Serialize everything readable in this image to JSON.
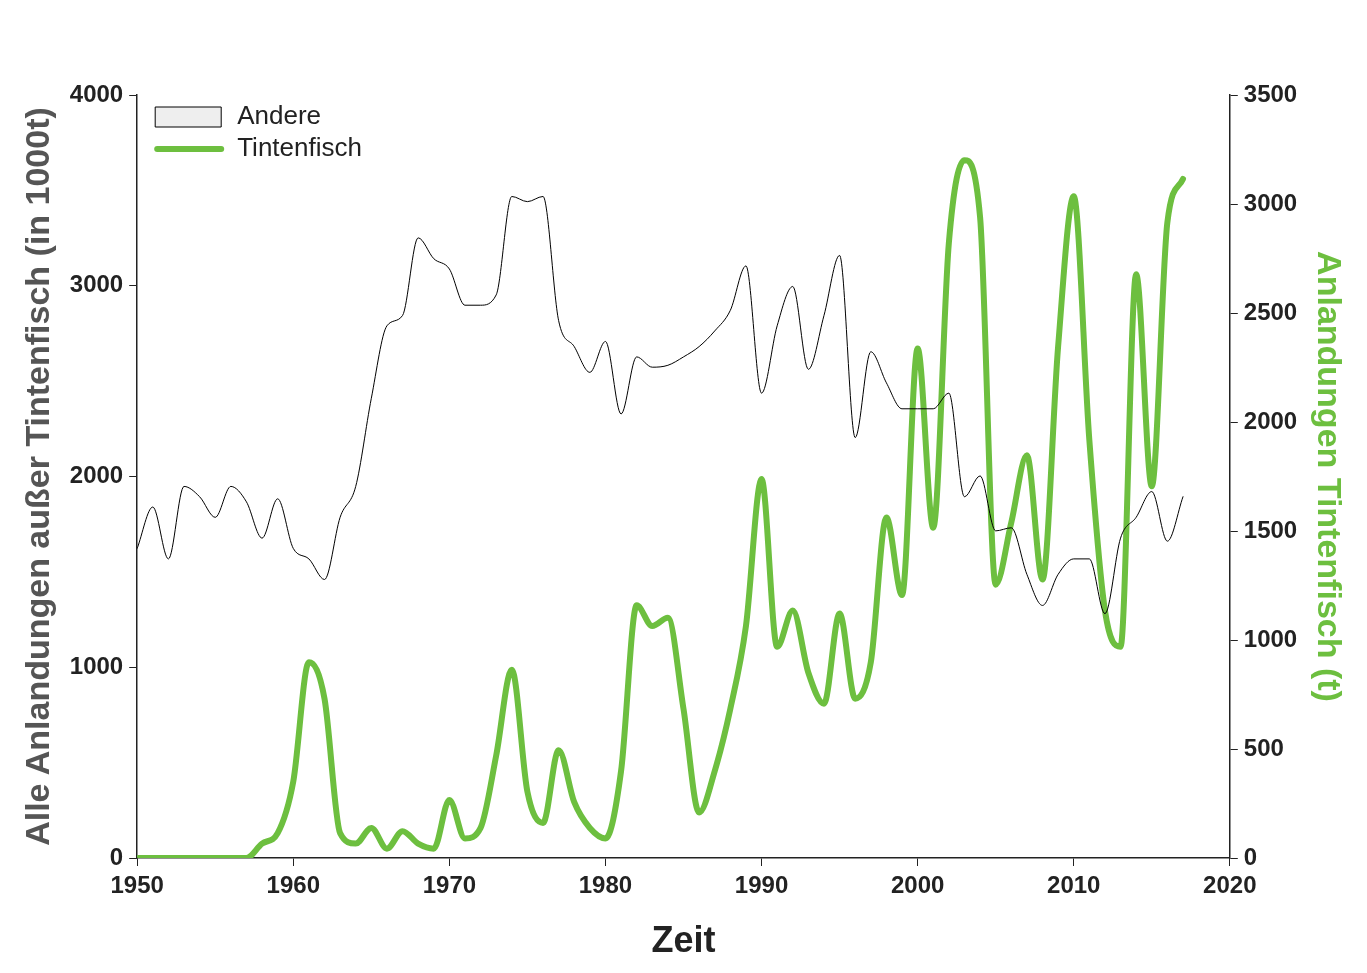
{
  "chart_data": {
    "type": "line",
    "xlabel": "Zeit",
    "ylabel": "Alle Anlandungen außer Tintenfisch (in 1000t)",
    "y2label": "Anlandungen Tintenfisch (t)",
    "x": [
      1950,
      1951,
      1952,
      1953,
      1954,
      1955,
      1956,
      1957,
      1958,
      1959,
      1960,
      1961,
      1962,
      1963,
      1964,
      1965,
      1966,
      1967,
      1968,
      1969,
      1970,
      1971,
      1972,
      1973,
      1974,
      1975,
      1976,
      1977,
      1978,
      1979,
      1980,
      1981,
      1982,
      1983,
      1984,
      1985,
      1986,
      1987,
      1988,
      1989,
      1990,
      1991,
      1992,
      1993,
      1994,
      1995,
      1996,
      1997,
      1998,
      1999,
      2000,
      2001,
      2002,
      2003,
      2004,
      2005,
      2006,
      2007,
      2008,
      2009,
      2010,
      2011,
      2012,
      2013,
      2014,
      2015,
      2016,
      2017
    ],
    "xlim": [
      1950,
      2020
    ],
    "xticks": [
      1950,
      1960,
      1970,
      1980,
      1990,
      2000,
      2010,
      2020
    ],
    "ylim": [
      0,
      4000
    ],
    "yticks": [
      0,
      1000,
      2000,
      3000,
      4000
    ],
    "y2lim": [
      0,
      3500
    ],
    "y2ticks": [
      0,
      500,
      1000,
      1500,
      2000,
      2500,
      3000,
      3500
    ],
    "grid": false,
    "legend": "top left",
    "marker": "none",
    "line_style": "solid",
    "series": [
      {
        "name": "Andere",
        "color": "#000000",
        "values": [
          1623,
          1840,
          1568,
          1948,
          1894,
          1786,
          1948,
          1867,
          1677,
          1883,
          1623,
          1568,
          1460,
          1786,
          1948,
          2410,
          2790,
          2844,
          3251,
          3142,
          3088,
          2898,
          2898,
          2952,
          3468,
          3441,
          3468,
          2817,
          2681,
          2546,
          2708,
          2328,
          2627,
          2573,
          2583,
          2627,
          2681,
          2763,
          2871,
          3104,
          2437,
          2790,
          2996,
          2562,
          2844,
          3159,
          2204,
          2654,
          2491,
          2355,
          2355,
          2355,
          2437,
          1894,
          2003,
          1715,
          1731,
          1487,
          1324,
          1487,
          1568,
          1568,
          1281,
          1677,
          1786,
          1921,
          1661,
          1894
        ]
      },
      {
        "name": "Tintenfisch",
        "color": "#6dbf3f",
        "axis": "y2",
        "values": [
          0,
          0,
          0,
          0,
          0,
          0,
          0,
          0,
          66,
          114,
          351,
          898,
          731,
          114,
          66,
          138,
          43,
          123,
          66,
          43,
          266,
          90,
          138,
          470,
          864,
          304,
          161,
          494,
          256,
          138,
          90,
          399,
          1159,
          1064,
          1102,
          684,
          209,
          399,
          684,
          1064,
          1738,
          969,
          1135,
          850,
          708,
          1121,
          731,
          898,
          1562,
          1206,
          2337,
          1515,
          2821,
          3201,
          2940,
          1254,
          1539,
          1847,
          1277,
          2346,
          3035,
          1918,
          1135,
          969,
          2678,
          1705,
          2916,
          3115
        ]
      }
    ]
  }
}
